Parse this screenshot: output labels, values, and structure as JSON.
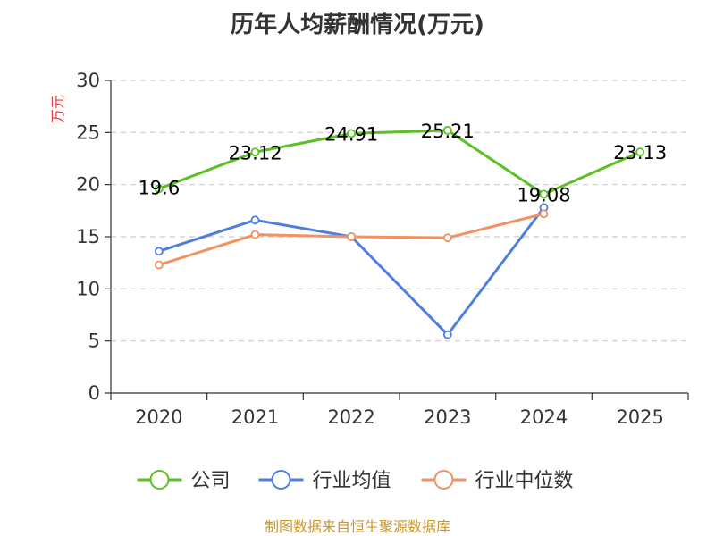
{
  "chart_data": {
    "type": "line",
    "title": "历年人均薪酬情况(万元)",
    "ylabel": "万元",
    "xlabel": "",
    "categories": [
      "2020",
      "2021",
      "2022",
      "2023",
      "2024",
      "2025"
    ],
    "ylim": [
      0,
      30
    ],
    "yticks": [
      0,
      5,
      10,
      15,
      20,
      25,
      30
    ],
    "grid": true,
    "legend_position": "bottom",
    "series": [
      {
        "name": "公司",
        "color": "#5bc122",
        "values": [
          19.6,
          23.12,
          24.91,
          25.21,
          19.08,
          23.13
        ],
        "labels": [
          "19.6",
          "23.12",
          "24.91",
          "25.21",
          "19.08",
          "23.13"
        ]
      },
      {
        "name": "行业均值",
        "color": "#4e7fdc",
        "values": [
          13.6,
          16.6,
          15.0,
          5.6,
          17.8,
          null
        ]
      },
      {
        "name": "行业中位数",
        "color": "#f29161",
        "values": [
          12.3,
          15.2,
          15.0,
          14.9,
          17.2,
          null
        ]
      }
    ]
  },
  "colors": {
    "ylabel": "#e03c3c",
    "source": "#c8962a",
    "grid": "#cccccc",
    "axis": "#333333"
  },
  "source_text": "制图数据来自恒生聚源数据库"
}
